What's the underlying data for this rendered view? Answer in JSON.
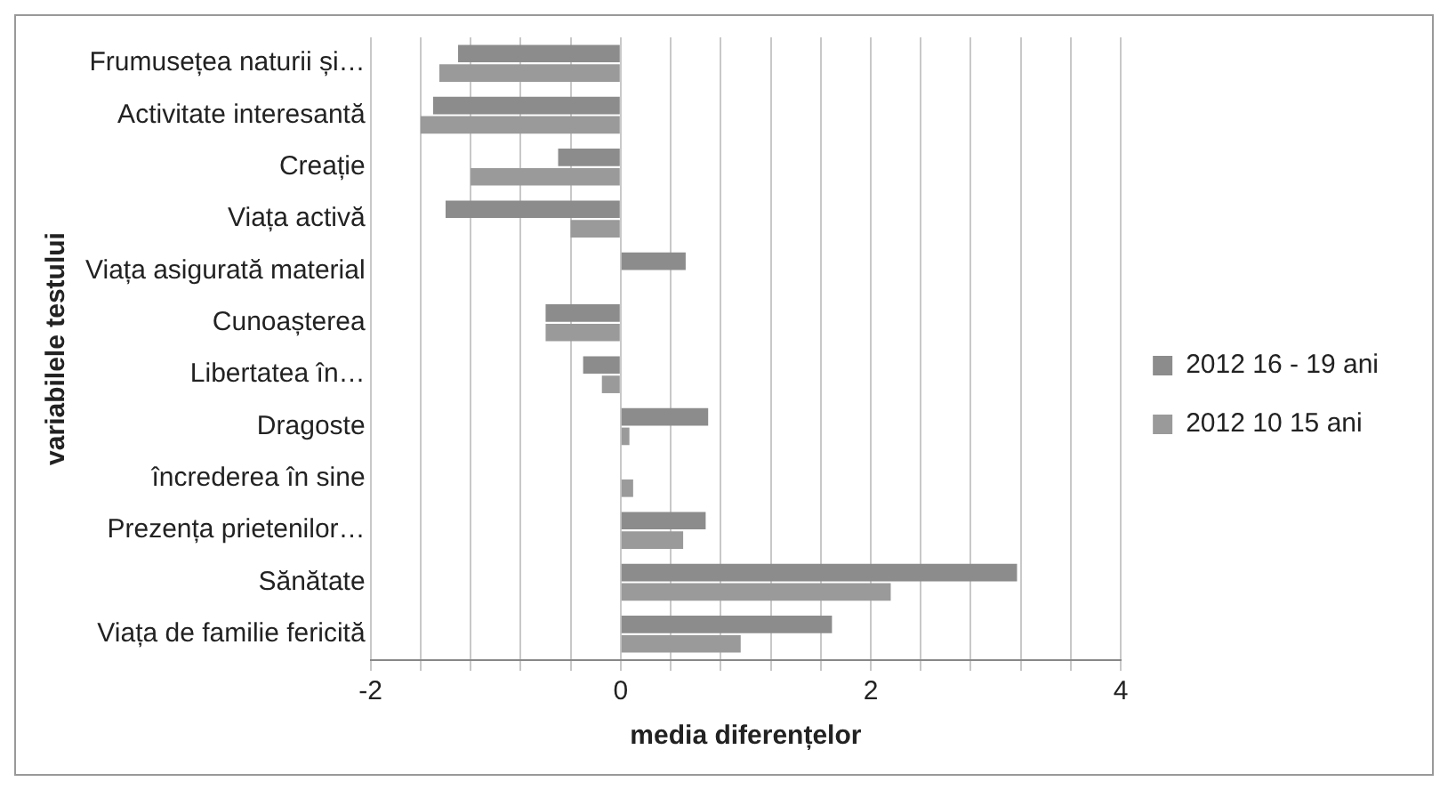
{
  "chart_data": {
    "type": "bar",
    "orientation": "horizontal",
    "xlabel": "media diferențelor",
    "ylabel": "variabilele testului",
    "categories": [
      "Frumusețea naturii și…",
      "Activitate interesantă",
      "Creație",
      "Viața activă",
      "Viața asigurată material",
      "Cunoașterea",
      "Libertatea în…",
      "Dragoste",
      "încrederea în sine",
      "Prezența prietenilor…",
      "Sănătate",
      "Viața de familie fericită"
    ],
    "series": [
      {
        "name": "2012 16 - 19 ani",
        "color": "#8c8c8c",
        "values": [
          -1.3,
          -1.5,
          -0.5,
          -1.4,
          0.52,
          -0.6,
          -0.3,
          0.7,
          0,
          0.68,
          3.17,
          1.69
        ]
      },
      {
        "name": "2012 10 15 ani",
        "color": "#9a9a9a",
        "values": [
          -1.45,
          -1.6,
          -1.2,
          -0.4,
          0,
          -0.6,
          -0.15,
          0.07,
          0.1,
          0.5,
          2.16,
          0.96
        ]
      }
    ],
    "xlim": [
      -2,
      4
    ],
    "xticks": [
      -2,
      {
        "value": -1.6,
        "label": null
      },
      {
        "value": -1.2,
        "label": null
      },
      {
        "value": -0.8,
        "label": null
      },
      {
        "value": -0.4,
        "label": null
      },
      0,
      {
        "value": 0.4,
        "label": null
      },
      {
        "value": 0.8,
        "label": null
      },
      {
        "value": 1.2,
        "label": null
      },
      {
        "value": 1.6,
        "label": null
      },
      2,
      {
        "value": 2.4,
        "label": null
      },
      {
        "value": 2.8,
        "label": null
      },
      {
        "value": 3.2,
        "label": null
      },
      {
        "value": 3.6,
        "label": null
      },
      4
    ],
    "grid": "x",
    "legend": "right"
  }
}
